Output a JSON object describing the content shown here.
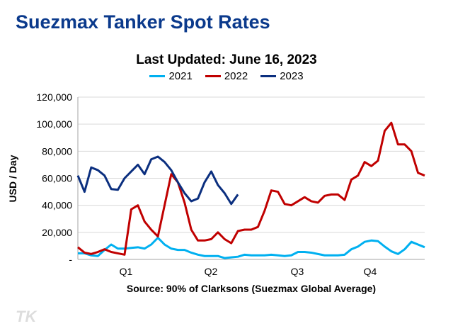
{
  "title": "Suezmax Tanker Spot Rates",
  "logo_text": "TK",
  "chart_data": {
    "type": "line",
    "title": "Last Updated: June 16, 2023",
    "ylabel": "USD / Day",
    "xlabel": "Source: 90% of Clarksons (Suezmax Global Average)",
    "ylim": [
      0,
      120000
    ],
    "yticks": [
      "-",
      "20,000",
      "40,000",
      "60,000",
      "80,000",
      "100,000",
      "120,000"
    ],
    "xticks": [
      "Q1",
      "Q2",
      "Q3",
      "Q4"
    ],
    "grid": true,
    "legend": "top",
    "series": [
      {
        "name": "2021",
        "color": "#00b0f0",
        "values": [
          4500,
          4500,
          3000,
          2500,
          7000,
          11000,
          8000,
          8000,
          8500,
          9000,
          8000,
          11000,
          16000,
          11000,
          8000,
          7000,
          7000,
          5000,
          3500,
          2500,
          2500,
          2500,
          1000,
          1500,
          2000,
          3500,
          3000,
          3000,
          3000,
          3500,
          3000,
          2500,
          3000,
          5500,
          5500,
          5000,
          4000,
          3000,
          3000,
          3000,
          3500,
          7500,
          9500,
          13000,
          14000,
          13500,
          9500,
          6000,
          4000,
          7500,
          13000,
          11000,
          9000
        ]
      },
      {
        "name": "2022",
        "color": "#c00000",
        "values": [
          9000,
          5000,
          4000,
          5500,
          7500,
          5500,
          4500,
          3500,
          37000,
          40000,
          28000,
          22000,
          17000,
          40000,
          63000,
          57000,
          42000,
          22000,
          14000,
          14000,
          15000,
          20000,
          15000,
          12000,
          21000,
          22000,
          22000,
          24000,
          36000,
          51000,
          50000,
          41000,
          40000,
          43000,
          46000,
          43000,
          42000,
          47000,
          48000,
          48000,
          44000,
          59000,
          62000,
          72000,
          69000,
          73000,
          95000,
          101000,
          85000,
          85000,
          80000,
          64000,
          62000
        ]
      },
      {
        "name": "2023",
        "color": "#0b2f7f",
        "values": [
          62000,
          50000,
          68000,
          66000,
          62000,
          52000,
          51500,
          60000,
          65000,
          70000,
          63000,
          74000,
          76000,
          72000,
          66000,
          57000,
          49000,
          43000,
          45000,
          57000,
          65000,
          55000,
          49000,
          41000,
          48000
        ]
      }
    ]
  }
}
